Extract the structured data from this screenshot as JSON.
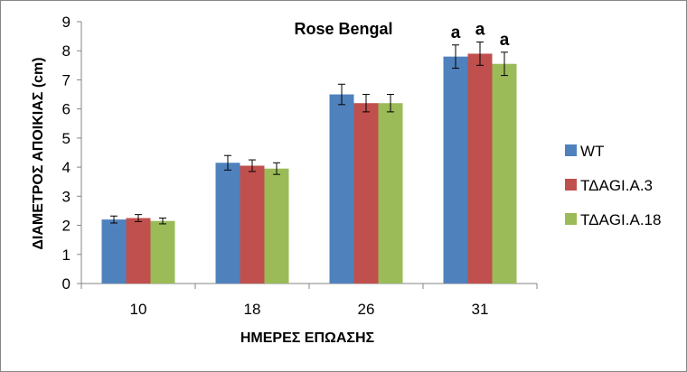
{
  "chart_data": {
    "type": "bar",
    "title": "Rose Bengal",
    "xlabel": "ΗΜΕΡΕΣ ΕΠΩΑΣΗΣ",
    "ylabel": "ΔΙΑΜΕΤΡΟΣ ΑΠΟΙΚΙΑΣ (cm)",
    "ylim": [
      0,
      9
    ],
    "yticks": [
      0,
      1,
      2,
      3,
      4,
      5,
      6,
      7,
      8,
      9
    ],
    "grid": false,
    "legend": "right",
    "categories": [
      "10",
      "18",
      "26",
      "31"
    ],
    "series": [
      {
        "name": "WT",
        "color": "#4f81bd",
        "values": [
          2.2,
          4.15,
          6.5,
          7.8
        ],
        "errors": [
          0.12,
          0.25,
          0.35,
          0.4
        ]
      },
      {
        "name": "ΤΔAGI.A.3",
        "color": "#c0504d",
        "values": [
          2.25,
          4.05,
          6.2,
          7.9
        ],
        "errors": [
          0.12,
          0.2,
          0.3,
          0.4
        ]
      },
      {
        "name": "ΤΔAGI.A.18",
        "color": "#9bbb59",
        "values": [
          2.15,
          3.95,
          6.2,
          7.55
        ],
        "errors": [
          0.1,
          0.2,
          0.3,
          0.4
        ]
      }
    ],
    "annotations": [
      {
        "text": "a",
        "category": "31",
        "series": "WT"
      },
      {
        "text": "a",
        "category": "31",
        "series": "ΤΔAGI.A.3"
      },
      {
        "text": "a",
        "category": "31",
        "series": "ΤΔAGI.A.18"
      }
    ]
  }
}
